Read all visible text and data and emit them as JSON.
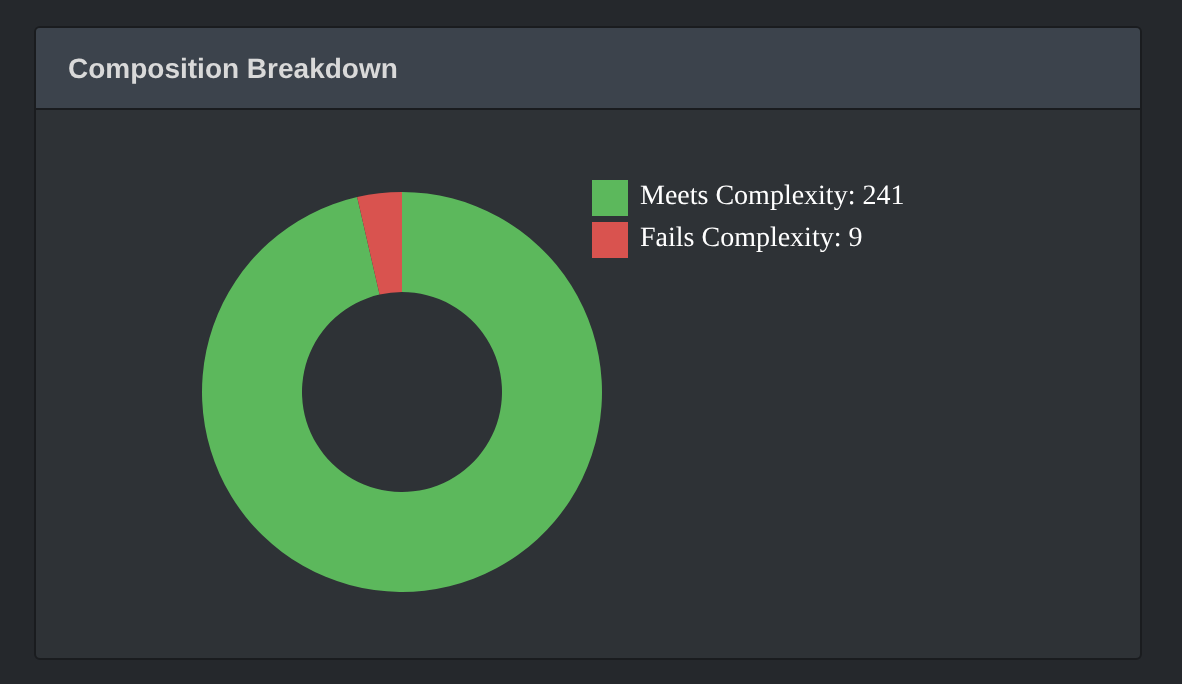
{
  "chart_data": {
    "type": "donut",
    "title": "Composition Breakdown",
    "categories": [
      "Meets Complexity: 241",
      "Fails Complexity: 9"
    ],
    "values": [
      241,
      9
    ],
    "colors": [
      "#5cb85c",
      "#d9534f"
    ],
    "legend": "top right"
  }
}
